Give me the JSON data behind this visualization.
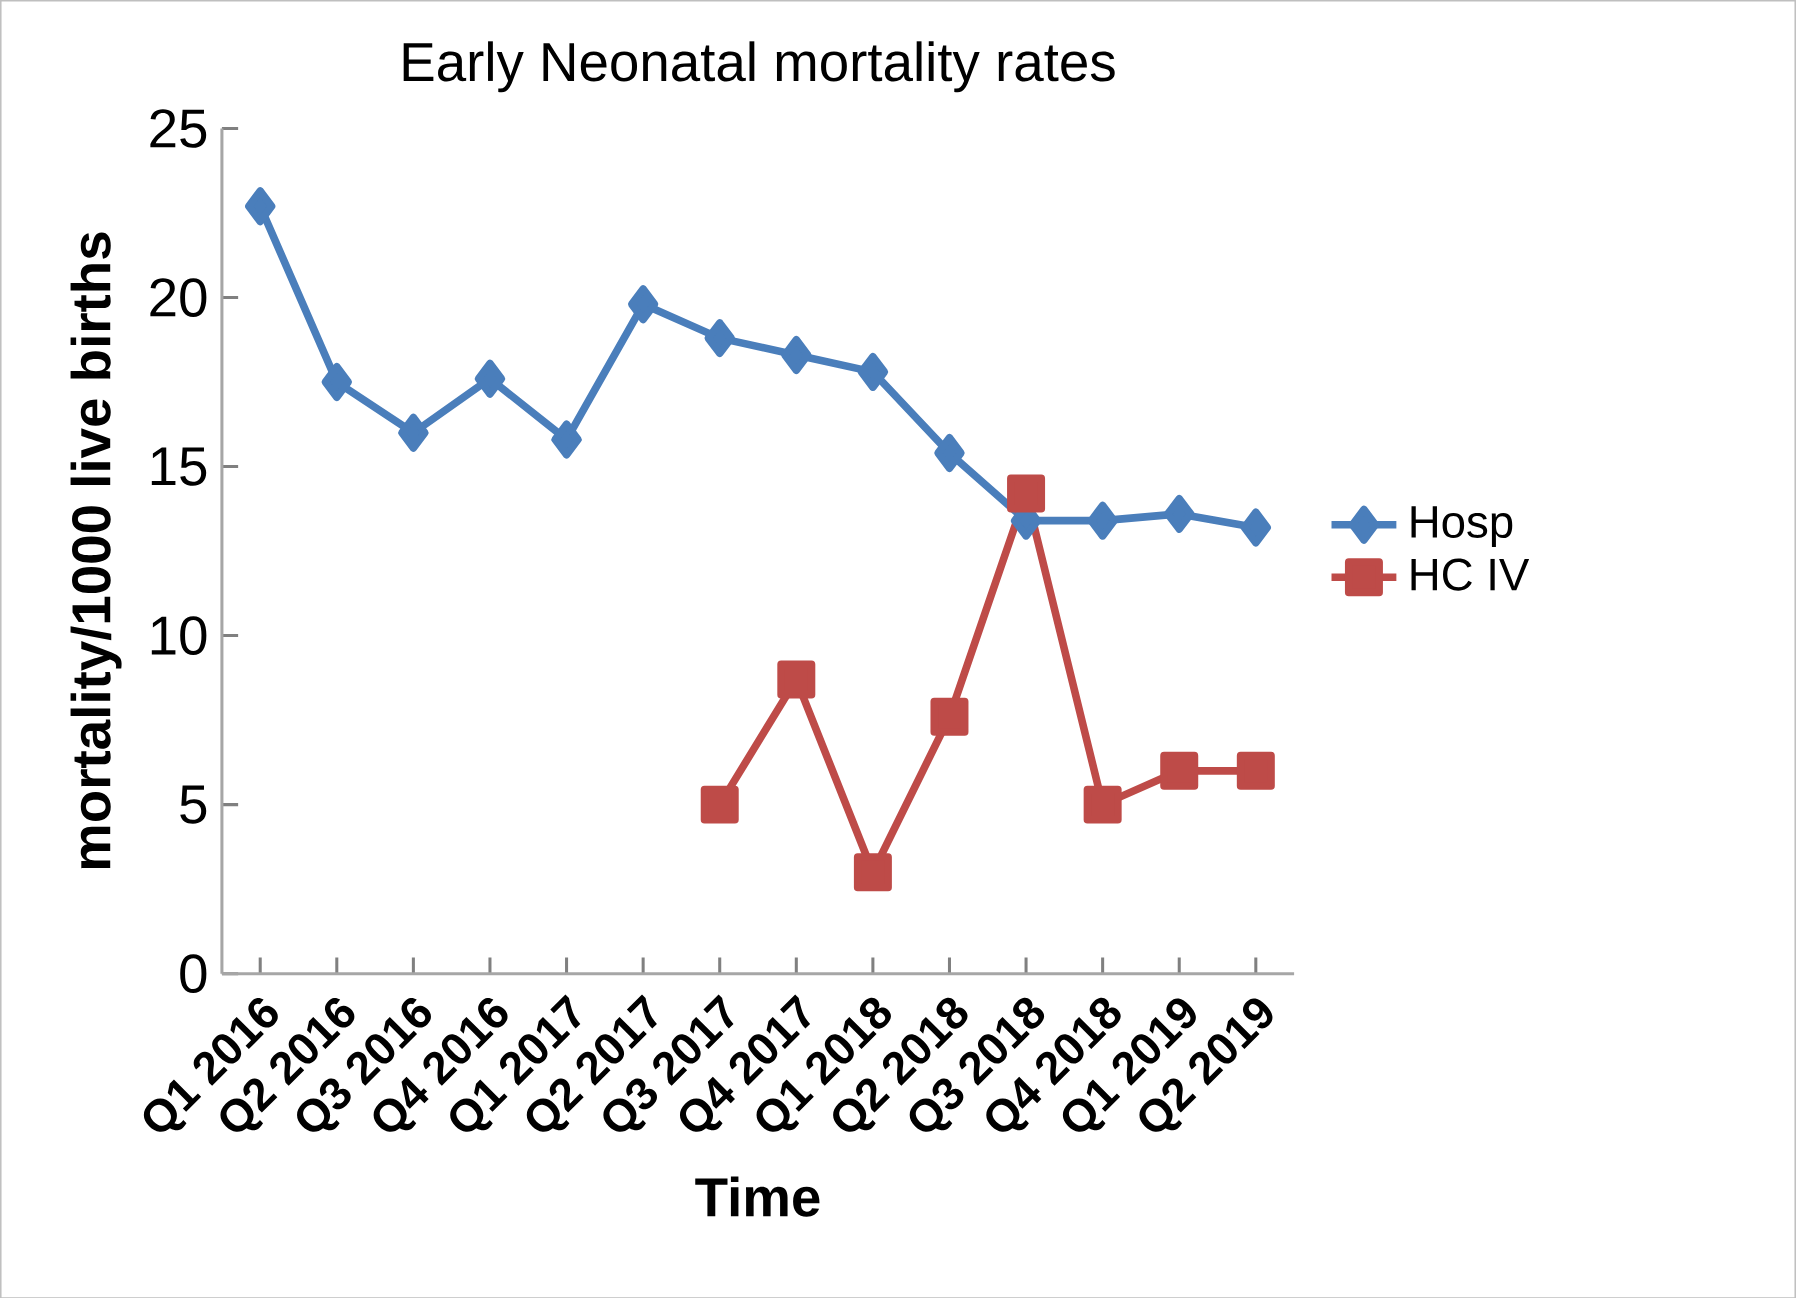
{
  "chart_data": {
    "type": "line",
    "title": "Early Neonatal mortality rates",
    "xlabel": "Time",
    "ylabel": "mortality/1000 live births",
    "categories": [
      "Q1 2016",
      "Q2 2016",
      "Q3 2016",
      "Q4 2016",
      "Q1 2017",
      "Q2 2017",
      "Q3 2017",
      "Q4 2017",
      "Q1 2018",
      "Q2 2018",
      "Q3 2018",
      "Q4 2018",
      "Q1 2019",
      "Q2 2019"
    ],
    "series": [
      {
        "name": "Hosp",
        "color": "#4a7ebb",
        "marker": "diamond",
        "values": [
          22.7,
          17.5,
          16.0,
          17.6,
          15.8,
          19.8,
          18.8,
          18.3,
          17.8,
          15.4,
          13.4,
          13.4,
          13.6,
          13.2
        ]
      },
      {
        "name": "HC IV",
        "color": "#be4b48",
        "marker": "square",
        "values": [
          null,
          null,
          null,
          null,
          null,
          null,
          5.0,
          8.7,
          3.0,
          7.6,
          14.2,
          5.0,
          6.0,
          6.0
        ]
      }
    ],
    "ylim": [
      0,
      25
    ],
    "yticks": [
      0,
      5,
      10,
      15,
      20,
      25
    ],
    "legend": "right",
    "line_style": "solid"
  }
}
